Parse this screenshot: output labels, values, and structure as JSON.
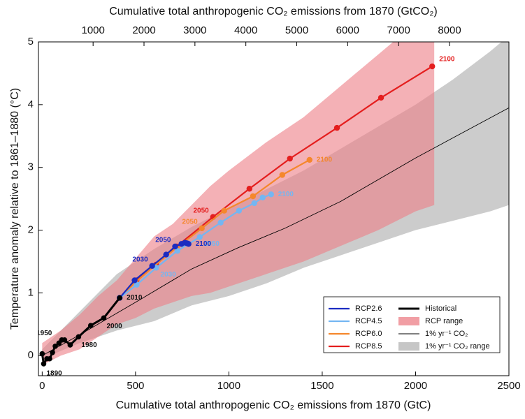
{
  "chart_data": {
    "type": "line",
    "xlabel": "Cumulative total anthropogenic CO₂ emissions from 1870 (GtC)",
    "x2label": "Cumulative total anthropogenic CO₂ emissions from 1870 (GtCO₂)",
    "ylabel": "Temperature anomaly relative to 1861–1880 (°C)",
    "xlim": [
      -20,
      2500
    ],
    "xticks": [
      0,
      500,
      1000,
      1500,
      2000,
      2500
    ],
    "x2lim": [
      -73.3,
      9166.7
    ],
    "x2ticks": [
      1000,
      2000,
      3000,
      4000,
      5000,
      6000,
      7000,
      8000
    ],
    "ylim": [
      -0.32,
      5
    ],
    "yticks": [
      0,
      1,
      2,
      3,
      4,
      5
    ],
    "legend": "lower right",
    "series": [
      {
        "name": "RCP2.6",
        "color": "#1b2cc1",
        "width": 2.2,
        "x": [
          415,
          495,
          589,
          664,
          712,
          746,
          765,
          776,
          784
        ],
        "values": [
          0.92,
          1.2,
          1.43,
          1.61,
          1.74,
          1.78,
          1.8,
          1.79,
          1.78
        ],
        "point_labels": [
          null,
          null,
          "2030",
          null,
          "2050",
          null,
          null,
          null,
          "2100"
        ]
      },
      {
        "name": "RCP4.5",
        "color": "#74b6f2",
        "width": 2.2,
        "x": [
          415,
          506,
          611,
          724,
          844,
          956,
          1054,
          1136,
          1181,
          1226
        ],
        "values": [
          0.92,
          1.13,
          1.4,
          1.67,
          1.89,
          2.12,
          2.31,
          2.43,
          2.52,
          2.57
        ],
        "point_labels": [
          null,
          null,
          "2030",
          null,
          "2050",
          null,
          null,
          null,
          null,
          "2100"
        ]
      },
      {
        "name": "RCP6.0",
        "color": "#f5872c",
        "width": 2.2,
        "x": [
          415,
          500,
          600,
          720,
          855,
          975,
          1129,
          1286,
          1432
        ],
        "values": [
          0.92,
          1.17,
          1.43,
          1.72,
          2.03,
          2.31,
          2.54,
          2.88,
          3.12
        ],
        "point_labels": [
          null,
          null,
          null,
          null,
          "2050",
          null,
          null,
          null,
          "2100"
        ]
      },
      {
        "name": "RCP8.5",
        "color": "#e41e1e",
        "width": 2.2,
        "x": [
          415,
          505,
          610,
          720,
          915,
          1110,
          1327,
          1579,
          1815,
          2089
        ],
        "values": [
          0.92,
          1.2,
          1.45,
          1.74,
          2.21,
          2.66,
          3.14,
          3.63,
          4.11,
          4.61
        ],
        "point_labels": [
          null,
          null,
          null,
          null,
          "2050",
          null,
          null,
          null,
          null,
          "2100"
        ]
      },
      {
        "name": "Historical",
        "color": "#000000",
        "width": 3,
        "x": [
          0,
          8,
          25,
          40,
          55,
          70,
          90,
          105,
          120,
          150,
          195,
          260,
          330,
          415
        ],
        "values": [
          0.03,
          -0.13,
          -0.05,
          -0.05,
          0.05,
          0.15,
          0.2,
          0.25,
          0.25,
          0.17,
          0.3,
          0.48,
          0.6,
          0.92
        ],
        "point_labels": [
          null,
          "1890",
          null,
          null,
          null,
          null,
          "1950",
          null,
          null,
          null,
          "1980",
          null,
          "2000",
          "2010"
        ]
      },
      {
        "name": "1% yr⁻¹ CO₂",
        "color": "#000000",
        "width": 0.9,
        "x": [
          0,
          200,
          500,
          800,
          1050,
          1300,
          1600,
          2000,
          2500
        ],
        "values": [
          0,
          0.33,
          0.85,
          1.38,
          1.72,
          2.03,
          2.46,
          3.15,
          3.95
        ]
      }
    ],
    "ranges": [
      {
        "name": "RCP range",
        "color": "#ec7d86",
        "x": [
          0,
          100,
          200,
          300,
          400,
          500,
          600,
          700,
          800,
          900,
          1000,
          1200,
          1400,
          1600,
          1800,
          2000,
          2100
        ],
        "upper": [
          0.2,
          0.4,
          0.65,
          0.95,
          1.2,
          1.55,
          1.9,
          2.1,
          2.4,
          2.7,
          2.95,
          3.4,
          3.8,
          4.3,
          4.8,
          5.3,
          5.4
        ],
        "lower": [
          -0.15,
          0,
          0.1,
          0.3,
          0.5,
          0.6,
          0.75,
          0.85,
          0.95,
          1.0,
          1.1,
          1.3,
          1.5,
          1.75,
          2.0,
          2.3,
          2.4
        ]
      },
      {
        "name": "1% yr⁻¹ CO₂ range",
        "color": "#c6c6c6",
        "x": [
          0,
          200,
          400,
          600,
          800,
          1000,
          1200,
          1400,
          1600,
          1800,
          2000,
          2200,
          2400,
          2500
        ],
        "upper": [
          0.1,
          0.7,
          1.3,
          1.7,
          2.05,
          2.35,
          2.65,
          2.95,
          3.3,
          3.65,
          4.0,
          4.4,
          4.85,
          5.1
        ],
        "lower": [
          -0.05,
          0.2,
          0.4,
          0.55,
          0.8,
          0.95,
          1.15,
          1.4,
          1.6,
          1.8,
          2.0,
          2.15,
          2.3,
          2.4
        ]
      }
    ]
  }
}
